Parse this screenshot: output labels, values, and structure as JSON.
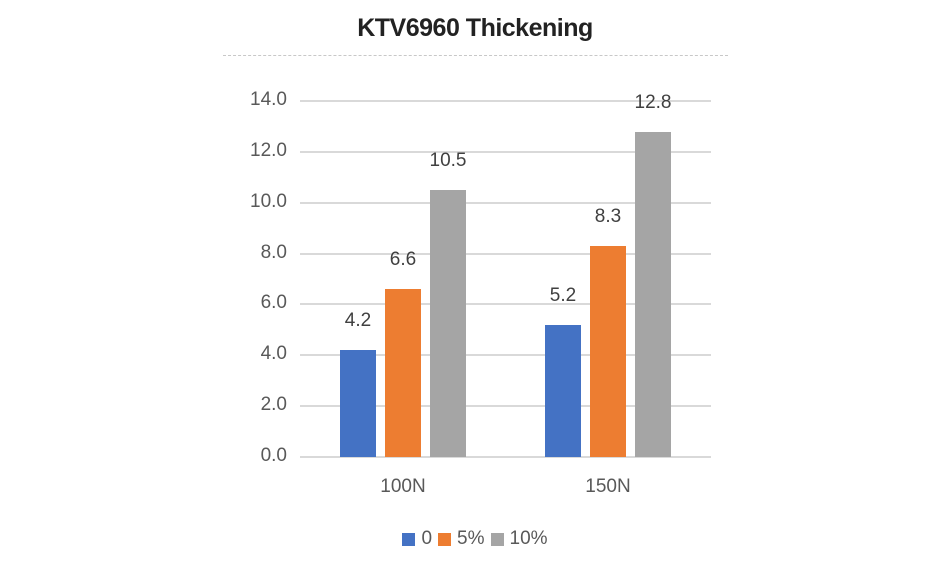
{
  "chart_data": {
    "type": "bar",
    "title": "KTV6960 Thickening",
    "categories": [
      "100N",
      "150N"
    ],
    "series": [
      {
        "name": "0",
        "color": "#4472C4",
        "values": [
          4.2,
          5.2
        ]
      },
      {
        "name": "5%",
        "color": "#ED7D31",
        "values": [
          6.6,
          8.3
        ]
      },
      {
        "name": "10%",
        "color": "#A5A5A5",
        "values": [
          10.5,
          12.8
        ]
      }
    ],
    "xlabel": "",
    "ylabel": "",
    "ylim": [
      0,
      14
    ],
    "yticks": [
      "0.0",
      "2.0",
      "4.0",
      "6.0",
      "8.0",
      "10.0",
      "12.0",
      "14.0"
    ],
    "grid": true,
    "legend_position": "bottom",
    "data_labels": true
  }
}
